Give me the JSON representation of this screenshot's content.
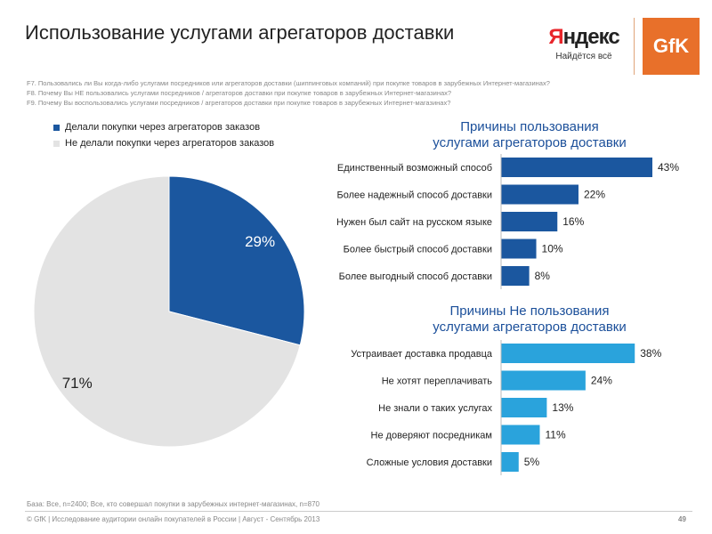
{
  "header": {
    "title": "Использование услугами агрегаторов доставки",
    "yandex_logo_text": "Яндекс",
    "yandex_slogan": "Найдётся всё",
    "gfk_logo_text": "GfK"
  },
  "questions": [
    "F7. Пользовались ли Вы когда-либо услугами посредников или агрегаторов доставки (шиппинговых компаний) при покупке товаров в зарубежных Интернет-магазинах?",
    "F8. Почему Вы НЕ пользовались услугами посредников / агрегаторов доставки при покупке товаров в зарубежных Интернет-магазинах?",
    "F9. Почему Вы воспользовались услугами посредников / агрегаторов доставки при покупке товаров в зарубежных Интернет-магазинах?"
  ],
  "colors": {
    "dark_blue": "#1b579f",
    "light_blue": "#2aa3dc",
    "pie_grey": "#e3e3e3",
    "title_blue": "#1b4f9a"
  },
  "chart_data": [
    {
      "type": "pie",
      "legend": [
        "Делали покупки через агрегаторов заказов",
        "Не делали покупки через агрегаторов заказов"
      ],
      "values": [
        29,
        71
      ],
      "labels": [
        "29%",
        "71%"
      ]
    },
    {
      "type": "bar",
      "orientation": "horizontal",
      "title_line1": "Причины пользования",
      "title_line2": "услугами агрегаторов доставки",
      "categories": [
        "Единственный возможный способ",
        "Более надежный способ доставки",
        "Нужен был сайт на русском языке",
        "Более быстрый способ доставки",
        "Более выгодный способ доставки"
      ],
      "values": [
        43,
        22,
        16,
        10,
        8
      ],
      "labels": [
        "43%",
        "22%",
        "16%",
        "10%",
        "8%"
      ]
    },
    {
      "type": "bar",
      "orientation": "horizontal",
      "title_line1": "Причины Не пользования",
      "title_line2": "услугами агрегаторов доставки",
      "categories": [
        "Устраивает доставка продавца",
        "Не хотят переплачивать",
        "Не знали о таких услугах",
        "Не доверяют посредникам",
        "Сложные условия доставки"
      ],
      "values": [
        38,
        24,
        13,
        11,
        5
      ],
      "labels": [
        "38%",
        "24%",
        "13%",
        "11%",
        "5%"
      ]
    }
  ],
  "footer": {
    "base": "База: Все, n=2400; Все, кто совершал покупки в зарубежных интернет-магазинах, n=870",
    "copyright": "© GfK | Исследование аудитории онлайн покупателей в России | Август - Сентябрь 2013",
    "page": "49"
  }
}
